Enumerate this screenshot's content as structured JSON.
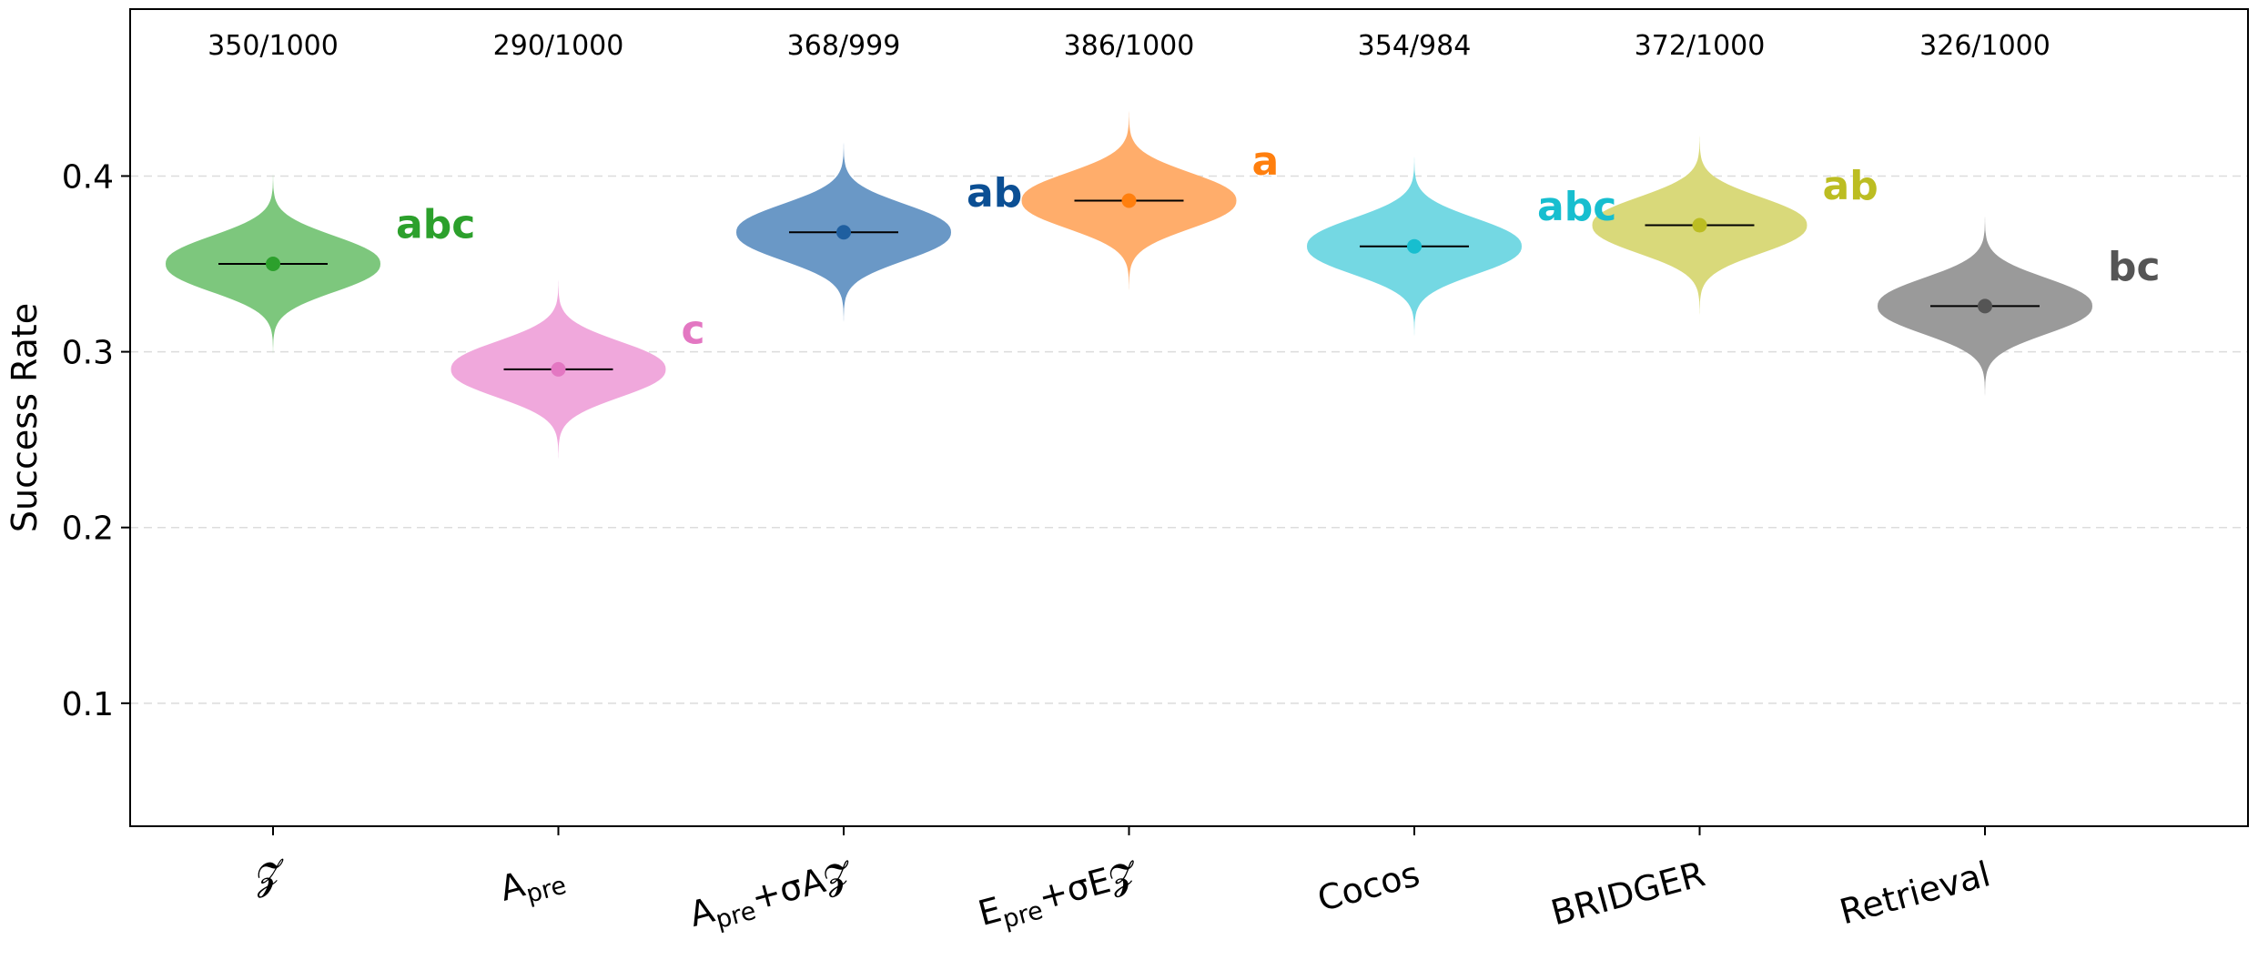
{
  "chart_data": {
    "type": "violin",
    "title": "",
    "xlabel": "",
    "ylabel": "Success Rate",
    "ylim": [
      0.03,
      0.495
    ],
    "yticks": [
      0.1,
      0.2,
      0.3,
      0.4
    ],
    "ytick_labels": [
      "0.1",
      "0.2",
      "0.3",
      "0.4"
    ],
    "grid": "horizontal-dashed",
    "series": [
      {
        "key": "z",
        "label": "𝓩",
        "label_main": "",
        "label_sub": "",
        "label_rest": "",
        "count": "350/1000",
        "value": 0.35,
        "letters": "abc",
        "color": "#2ca02c"
      },
      {
        "key": "apre",
        "label": "Apre",
        "label_main": "A",
        "label_sub": "pre",
        "label_rest": "",
        "count": "290/1000",
        "value": 0.29,
        "letters": "c",
        "color": "#e377c2"
      },
      {
        "key": "apre_sig",
        "label": "Apre+σA𝓩",
        "label_main": "A",
        "label_sub": "pre",
        "label_rest": "+σA𝓩",
        "count": "368/999",
        "value": 0.368,
        "letters": "ab",
        "color": "#1f5fa0"
      },
      {
        "key": "epre_sig",
        "label": "Epre+σE𝓩",
        "label_main": "E",
        "label_sub": "pre",
        "label_rest": "+σE𝓩",
        "count": "386/1000",
        "value": 0.386,
        "letters": "a",
        "color": "#ff7f0e"
      },
      {
        "key": "cocos",
        "label": "Cocos",
        "label_main": "Cocos",
        "label_sub": "",
        "label_rest": "",
        "count": "354/984",
        "value": 0.36,
        "letters": "abc",
        "color": "#17becf"
      },
      {
        "key": "bridger",
        "label": "BRIDGER",
        "label_main": "BRIDGER",
        "label_sub": "",
        "label_rest": "",
        "count": "372/1000",
        "value": 0.372,
        "letters": "ab",
        "color": "#bcbd22"
      },
      {
        "key": "retrieval",
        "label": "Retrieval",
        "label_main": "Retrieval",
        "label_sub": "",
        "label_rest": "",
        "count": "326/1000",
        "value": 0.326,
        "letters": "bc",
        "color": "#555555"
      }
    ],
    "violin_fill": [
      "#7dc77d",
      "#f0a8dc",
      "#6a98c6",
      "#ffad6b",
      "#74d8e3",
      "#d9d97a",
      "#9a9a9a"
    ],
    "letters_color": [
      "#2ca02c",
      "#e377c2",
      "#0b4f94",
      "#ff7f0e",
      "#17becf",
      "#bcbd22",
      "#555555"
    ]
  }
}
